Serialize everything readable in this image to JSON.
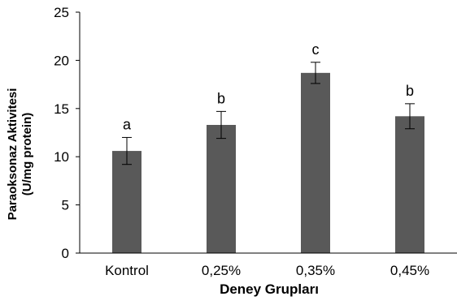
{
  "chart_data": {
    "type": "bar",
    "categories": [
      "Kontrol",
      "0,25%",
      "0,35%",
      "0,45%"
    ],
    "values": [
      10.6,
      13.3,
      18.7,
      14.2
    ],
    "errors": [
      1.4,
      1.4,
      1.1,
      1.3
    ],
    "annotations": [
      "a",
      "b",
      "c",
      "b"
    ],
    "xlabel": "Deney Grupları",
    "ylabel_lines": [
      "Paraoksonaz Aktivitesi",
      "(U/mg protein)"
    ],
    "ylim": [
      0,
      25
    ],
    "yticks": [
      0,
      5,
      10,
      15,
      20,
      25
    ],
    "grid": false,
    "legend": "none",
    "bar_color": "#595959",
    "error_color": "#000000"
  }
}
